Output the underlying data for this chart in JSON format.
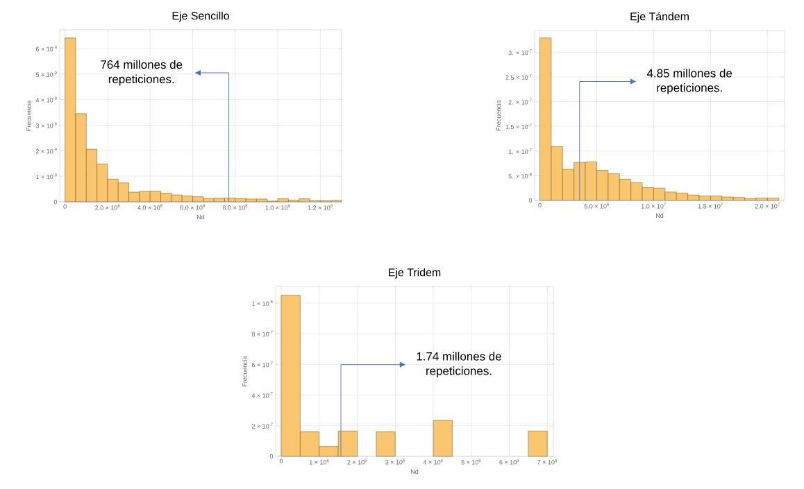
{
  "chart_data": [
    {
      "type": "histogram",
      "title": "Eje Sencillo",
      "xlabel": "Nd",
      "ylabel": "Frecuencia",
      "color": "#f9c66e",
      "grid": true,
      "bins": [
        0,
        50000000,
        100000000,
        150000000,
        200000000,
        250000000,
        300000000,
        350000000,
        400000000,
        450000000,
        500000000,
        550000000,
        600000000,
        650000000,
        700000000,
        750000000,
        800000000,
        850000000,
        900000000,
        950000000,
        1000000000,
        1050000000,
        1100000000,
        1150000000,
        1200000000,
        1250000000,
        1300000000
      ],
      "values": [
        6.41e-09,
        3.45e-09,
        2.06e-09,
        1.48e-09,
        8.9e-10,
        7.4e-10,
        3.8e-10,
        4.1e-10,
        4.2e-10,
        3.4e-10,
        2.7e-10,
        2.3e-10,
        2e-10,
        1.3e-10,
        1.4e-10,
        1.5e-10,
        1.3e-10,
        1.1e-10,
        1.1e-10,
        3e-11,
        1.2e-10,
        7e-11,
        1.2e-10,
        5e-11,
        4e-11,
        6e-11
      ],
      "xlim": [
        -25000000,
        1300000000
      ],
      "ylim": [
        0,
        6.73e-09
      ],
      "xticks": [
        0,
        {
          "value": 200000000,
          "label": "2.0 × 10$^{8}$"
        },
        {
          "value": 400000000,
          "label": "4.0 × 10$^{8}$"
        },
        {
          "value": 600000000,
          "label": "6.0 × 10$^{8}$"
        },
        {
          "value": 800000000,
          "label": "8.0 × 10$^{8}$"
        },
        {
          "value": 1000000000,
          "label": "1.0 × 10$^{9}$"
        },
        {
          "value": 1200000000,
          "label": "1.2 × 10$^{9}$"
        }
      ],
      "yticks": [
        0,
        {
          "value": 1e-09,
          "label": "1 × 10$^{-9}$"
        },
        {
          "value": 2e-09,
          "label": "2 × 10$^{-9}$"
        },
        {
          "value": 3e-09,
          "label": "3 × 10$^{-9}$"
        },
        {
          "value": 4e-09,
          "label": "4 × 10$^{-9}$"
        },
        {
          "value": 5e-09,
          "label": "5 × 10$^{-9}$"
        },
        {
          "value": 6e-09,
          "label": "6 × 10$^{-9}$"
        }
      ],
      "annotations": [
        "764 millones de repeticiones."
      ]
    },
    {
      "type": "histogram",
      "title": "Eje Tándem",
      "xlabel": "Nd",
      "ylabel": "Frecuencia",
      "color": "#f9c66e",
      "grid": true,
      "bins": [
        0,
        1000000,
        2000000,
        3000000,
        4000000,
        5000000,
        6000000,
        7000000,
        8000000,
        9000000,
        10000000,
        11000000,
        12000000,
        13000000,
        14000000,
        15000000,
        16000000,
        17000000,
        18000000,
        19000000,
        20000000,
        21000000
      ],
      "values": [
        3.29e-07,
        1.09e-07,
        6.3e-08,
        7.7e-08,
        7.8e-08,
        6.1e-08,
        5.4e-08,
        4.3e-08,
        3.6e-08,
        2.6e-08,
        2.5e-08,
        1.7e-08,
        1.5e-08,
        1.1e-08,
        9e-09,
        9e-09,
        7e-09,
        6e-09,
        4e-09,
        5e-09,
        5e-09
      ],
      "xlim": [
        -460000,
        21500000
      ],
      "ylim": [
        0,
        3.44e-07
      ],
      "xticks": [
        0,
        {
          "value": 5000000,
          "label": "5.0 × 10$^{6}$"
        },
        {
          "value": 10000000,
          "label": "1.0 × 10$^{7}$"
        },
        {
          "value": 15000000,
          "label": "1.5 × 10$^{7}$"
        },
        {
          "value": 20000000,
          "label": "2.0 × 10$^{7}$"
        }
      ],
      "yticks": [
        0,
        {
          "value": 5e-08,
          "label": "5. × 10$^{-8}$"
        },
        {
          "value": 1e-07,
          "label": "1. × 10$^{-7}$"
        },
        {
          "value": 1.5e-07,
          "label": "1.5 × 10$^{-7}$"
        },
        {
          "value": 2e-07,
          "label": "2. × 10$^{-7}$"
        },
        {
          "value": 2.5e-07,
          "label": "2.5 × 10$^{-7}$"
        },
        {
          "value": 3e-07,
          "label": "3. × 10$^{-7}$"
        }
      ],
      "annotations": [
        "4.85 millones de repeticiones."
      ]
    },
    {
      "type": "histogram",
      "title": "Eje Tridem",
      "xlabel": "Nd",
      "ylabel": "Frecuencia",
      "color": "#f9c66e",
      "grid": true,
      "bins": [
        0,
        500000,
        1000000,
        1500000,
        2000000,
        2500000,
        3000000,
        3500000,
        4000000,
        4500000,
        5000000,
        5500000,
        6000000,
        6500000,
        7000000
      ],
      "values": [
        1.05e-06,
        1.6e-07,
        6.5e-08,
        1.65e-07,
        0,
        1.6e-07,
        0,
        0,
        2.35e-07,
        0,
        0,
        0,
        0,
        1.65e-07
      ],
      "xlim": [
        -146000,
        7160000
      ],
      "ylim": [
        0,
        1.108e-06
      ],
      "xticks": [
        0,
        {
          "value": 1000000,
          "label": "1 × 10$^{6}$"
        },
        {
          "value": 2000000,
          "label": "2 × 10$^{6}$"
        },
        {
          "value": 3000000,
          "label": "3 × 10$^{6}$"
        },
        {
          "value": 4000000,
          "label": "4 × 10$^{6}$"
        },
        {
          "value": 5000000,
          "label": "5 × 10$^{6}$"
        },
        {
          "value": 6000000,
          "label": "6 × 10$^{6}$"
        },
        {
          "value": 7000000,
          "label": "7 × 10$^{6}$"
        }
      ],
      "yticks": [
        0,
        {
          "value": 2e-07,
          "label": "2 × 10$^{-7}$"
        },
        {
          "value": 4e-07,
          "label": "4 × 10$^{-7}$"
        },
        {
          "value": 6e-07,
          "label": "6 × 10$^{-7}$"
        },
        {
          "value": 8e-07,
          "label": "8 × 10$^{-7}$"
        },
        {
          "value": 1e-06,
          "label": "1 × 10$^{-6}$"
        }
      ],
      "annotations": [
        "1.74 millones de repeticiones."
      ]
    }
  ]
}
